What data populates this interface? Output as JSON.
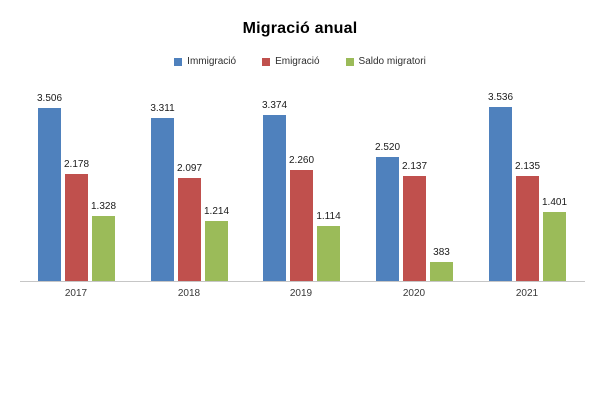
{
  "chart": {
    "title": "Migració anual",
    "legend": [
      {
        "label": "Immigració",
        "color": "#4F81BD"
      },
      {
        "label": "Emigració",
        "color": "#C0504D"
      },
      {
        "label": "Saldo migratori",
        "color": "#9BBB59"
      }
    ]
  },
  "chart_data": {
    "type": "bar",
    "title": "Migració anual",
    "categories": [
      "2017",
      "2018",
      "2019",
      "2020",
      "2021"
    ],
    "series": [
      {
        "name": "Immigració",
        "color": "#4F81BD",
        "values": [
          3506,
          3311,
          3374,
          2520,
          3536
        ],
        "labels": [
          "3.506",
          "3.311",
          "3.374",
          "2.520",
          "3.536"
        ]
      },
      {
        "name": "Emigració",
        "color": "#C0504D",
        "values": [
          2178,
          2097,
          2260,
          2137,
          2135
        ],
        "labels": [
          "2.178",
          "2.097",
          "2.260",
          "2.137",
          "2.135"
        ]
      },
      {
        "name": "Saldo migratori",
        "color": "#9BBB59",
        "values": [
          1328,
          1214,
          1114,
          383,
          1401
        ],
        "labels": [
          "1.328",
          "1.214",
          "1.114",
          "383",
          "1.401"
        ]
      }
    ],
    "xlabel": "",
    "ylabel": "",
    "ylim": [
      0,
      3700
    ],
    "grid": false,
    "legend_position": "top",
    "data_labels": true
  }
}
